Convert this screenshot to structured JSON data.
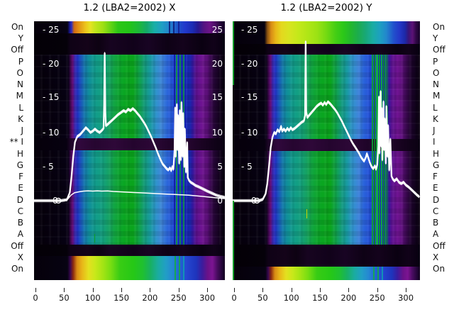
{
  "titles": {
    "left": "1.2 (LBA2=2002) X",
    "right": "1.2 (LBA2=2002) Y"
  },
  "row_labels_left": [
    "On",
    "Y",
    "Off",
    "P",
    "O",
    "N",
    "M",
    "L",
    "K",
    "J",
    "** I",
    "H",
    "G",
    "F",
    "E",
    "D",
    "C",
    "B",
    "A",
    "Off",
    "X",
    "On"
  ],
  "row_labels_right": [
    "On",
    "Y",
    "Off",
    "P",
    "O",
    "N",
    "M",
    "L",
    "K",
    "J",
    "I",
    "H",
    "G",
    "F",
    "E",
    "D",
    "C",
    "B",
    "A",
    "Off",
    "X",
    "On"
  ],
  "annotation_marker": "**",
  "y_axis": {
    "left_inner_labels": [
      "- 25",
      "- 20",
      "- 15",
      "- 10",
      "- 5",
      "0"
    ],
    "right_inner_labels": [
      "25",
      "20",
      "15",
      "10",
      "5",
      "0"
    ],
    "values": [
      25,
      20,
      15,
      10,
      5,
      0
    ]
  },
  "x_axis": {
    "tick_values": [
      0,
      50,
      100,
      150,
      200,
      250,
      300
    ]
  },
  "colors": {
    "background": "#ffffff",
    "panel_black": "#05000a",
    "curve_white": "#ffffff",
    "rfi_green": "#0c9e2c",
    "rfi_navy": "#101b9e",
    "purple_column": "#701492",
    "teal_body": "#119c8c",
    "green_center": "#0aa41c",
    "text_dark": "#111111"
  },
  "chart_data": [
    {
      "type": "heatmap",
      "panel": "X",
      "title": "1.2 (LBA2=2002) X",
      "x_range": [
        0,
        330
      ],
      "y_range": [
        -11.5,
        26.3
      ],
      "x_ticks": [
        0,
        50,
        100,
        150,
        200,
        250,
        300
      ],
      "y_ticks": [
        0,
        5,
        10,
        15,
        20,
        25
      ],
      "series": [
        {
          "name": "bandpass-x",
          "points": [
            [
              -3,
              0
            ],
            [
              36,
              0
            ],
            [
              44,
              0
            ],
            [
              55,
              0.15
            ],
            [
              60,
              1.2
            ],
            [
              63,
              3.5
            ],
            [
              66,
              6.5
            ],
            [
              69,
              8.6
            ],
            [
              73,
              9.4
            ],
            [
              78,
              9.7
            ],
            [
              83,
              10.2
            ],
            [
              88,
              10.7
            ],
            [
              92,
              10.4
            ],
            [
              96,
              10.0
            ],
            [
              100,
              10.2
            ],
            [
              104,
              10.5
            ],
            [
              108,
              10.2
            ],
            [
              112,
              10.0
            ],
            [
              116,
              10.3
            ],
            [
              119,
              10.6
            ],
            [
              120,
              14
            ],
            [
              121,
              21.6
            ],
            [
              122,
              13
            ],
            [
              123,
              11.0
            ],
            [
              126,
              11.2
            ],
            [
              130,
              11.5
            ],
            [
              134,
              11.8
            ],
            [
              139,
              12.2
            ],
            [
              144,
              12.6
            ],
            [
              149,
              12.9
            ],
            [
              154,
              13.2
            ],
            [
              158,
              13.0
            ],
            [
              162,
              13.4
            ],
            [
              166,
              13.2
            ],
            [
              170,
              13.5
            ],
            [
              174,
              13.2
            ],
            [
              178,
              12.8
            ],
            [
              182,
              12.4
            ],
            [
              186,
              11.9
            ],
            [
              190,
              11.4
            ],
            [
              194,
              10.8
            ],
            [
              198,
              10.1
            ],
            [
              202,
              9.4
            ],
            [
              206,
              8.6
            ],
            [
              210,
              7.8
            ],
            [
              214,
              6.9
            ],
            [
              218,
              6.1
            ],
            [
              222,
              5.4
            ],
            [
              226,
              5.0
            ],
            [
              229,
              4.7
            ],
            [
              232,
              4.5
            ],
            [
              235,
              4.8
            ],
            [
              237,
              4.4
            ],
            [
              239,
              5.0
            ],
            [
              241,
              4.6
            ],
            [
              243,
              7.5
            ],
            [
              244,
              13.6
            ],
            [
              245,
              6.5
            ],
            [
              247,
              14.1
            ],
            [
              248,
              7.5
            ],
            [
              249,
              12.5
            ],
            [
              251,
              5.5
            ],
            [
              252,
              13.2
            ],
            [
              254,
              6.0
            ],
            [
              255,
              14.4
            ],
            [
              257,
              6.5
            ],
            [
              258,
              12.8
            ],
            [
              260,
              5.0
            ],
            [
              261,
              10.5
            ],
            [
              263,
              4.2
            ],
            [
              265,
              8.5
            ],
            [
              266,
              3.4
            ],
            [
              268,
              3.0
            ],
            [
              271,
              2.7
            ],
            [
              275,
              2.5
            ],
            [
              280,
              2.2
            ],
            [
              286,
              2.0
            ],
            [
              293,
              1.7
            ],
            [
              300,
              1.4
            ],
            [
              308,
              1.1
            ],
            [
              316,
              0.8
            ],
            [
              324,
              0.6
            ],
            [
              330,
              0.5
            ]
          ]
        },
        {
          "name": "baseline-x",
          "points": [
            [
              -3,
              0
            ],
            [
              50,
              0
            ],
            [
              56,
              0.2
            ],
            [
              62,
              0.8
            ],
            [
              68,
              1.15
            ],
            [
              76,
              1.3
            ],
            [
              84,
              1.4
            ],
            [
              92,
              1.45
            ],
            [
              100,
              1.4
            ],
            [
              108,
              1.45
            ],
            [
              116,
              1.4
            ],
            [
              126,
              1.42
            ],
            [
              136,
              1.35
            ],
            [
              148,
              1.3
            ],
            [
              160,
              1.25
            ],
            [
              172,
              1.2
            ],
            [
              184,
              1.15
            ],
            [
              196,
              1.1
            ],
            [
              208,
              1.05
            ],
            [
              220,
              1.0
            ],
            [
              232,
              0.95
            ],
            [
              244,
              0.9
            ],
            [
              256,
              0.85
            ],
            [
              268,
              0.8
            ],
            [
              280,
              0.72
            ],
            [
              292,
              0.62
            ],
            [
              304,
              0.52
            ],
            [
              316,
              0.42
            ],
            [
              324,
              0.35
            ],
            [
              330,
              0.3
            ]
          ]
        },
        {
          "name": "zero-marker-x",
          "points": [
            [
              40,
              0
            ]
          ]
        }
      ]
    },
    {
      "type": "heatmap",
      "panel": "Y",
      "title": "1.2 (LBA2=2002) Y",
      "x_range": [
        0,
        323
      ],
      "y_range": [
        -11.5,
        26.3
      ],
      "x_ticks": [
        0,
        50,
        100,
        150,
        200,
        250,
        300
      ],
      "y_ticks": [
        0,
        5,
        10,
        15,
        20,
        25
      ],
      "series": [
        {
          "name": "bandpass-y",
          "points": [
            [
              -3,
              0
            ],
            [
              36,
              0
            ],
            [
              44,
              0
            ],
            [
              50,
              0.2
            ],
            [
              55,
              1.0
            ],
            [
              58,
              2.5
            ],
            [
              61,
              5.0
            ],
            [
              64,
              7.8
            ],
            [
              67,
              9.3
            ],
            [
              70,
              10.0
            ],
            [
              73,
              9.8
            ],
            [
              76,
              10.4
            ],
            [
              79,
              10.1
            ],
            [
              82,
              10.9
            ],
            [
              84,
              10.2
            ],
            [
              87,
              10.5
            ],
            [
              90,
              10.2
            ],
            [
              93,
              10.6
            ],
            [
              96,
              10.3
            ],
            [
              99,
              10.7
            ],
            [
              102,
              10.4
            ],
            [
              106,
              10.6
            ],
            [
              110,
              10.9
            ],
            [
              114,
              11.2
            ],
            [
              118,
              11.5
            ],
            [
              122,
              11.7
            ],
            [
              124,
              12.5
            ],
            [
              125,
              23.3
            ],
            [
              126,
              13
            ],
            [
              128,
              12.2
            ],
            [
              132,
              12.6
            ],
            [
              136,
              13.0
            ],
            [
              140,
              13.4
            ],
            [
              144,
              13.8
            ],
            [
              148,
              14.1
            ],
            [
              152,
              14.3
            ],
            [
              155,
              14.0
            ],
            [
              158,
              14.4
            ],
            [
              161,
              14.1
            ],
            [
              164,
              14.5
            ],
            [
              168,
              14.2
            ],
            [
              172,
              13.8
            ],
            [
              176,
              13.4
            ],
            [
              180,
              12.9
            ],
            [
              184,
              12.3
            ],
            [
              188,
              11.7
            ],
            [
              192,
              11.0
            ],
            [
              196,
              10.3
            ],
            [
              200,
              9.6
            ],
            [
              204,
              8.9
            ],
            [
              208,
              8.3
            ],
            [
              212,
              7.8
            ],
            [
              215,
              7.4
            ],
            [
              218,
              7.0
            ],
            [
              221,
              6.5
            ],
            [
              224,
              6.1
            ],
            [
              227,
              5.8
            ],
            [
              230,
              6.3
            ],
            [
              232,
              6.9
            ],
            [
              234,
              6.4
            ],
            [
              237,
              5.6
            ],
            [
              240,
              5.0
            ],
            [
              243,
              4.7
            ],
            [
              246,
              5.1
            ],
            [
              248,
              4.6
            ],
            [
              250,
              5.3
            ],
            [
              252,
              8.0
            ],
            [
              253,
              15.2
            ],
            [
              254,
              7.0
            ],
            [
              256,
              16.0
            ],
            [
              257,
              8.0
            ],
            [
              258,
              13.5
            ],
            [
              259,
              6.0
            ],
            [
              261,
              14.5
            ],
            [
              262,
              7.5
            ],
            [
              263,
              12.0
            ],
            [
              265,
              5.5
            ],
            [
              266,
              13.8
            ],
            [
              268,
              6.5
            ],
            [
              269,
              11.0
            ],
            [
              271,
              4.5
            ],
            [
              273,
              9.0
            ],
            [
              275,
              3.6
            ],
            [
              277,
              3.2
            ],
            [
              280,
              2.9
            ],
            [
              284,
              3.2
            ],
            [
              288,
              2.7
            ],
            [
              292,
              2.5
            ],
            [
              296,
              2.7
            ],
            [
              300,
              2.3
            ],
            [
              305,
              2.0
            ],
            [
              310,
              1.6
            ],
            [
              315,
              1.2
            ],
            [
              320,
              0.8
            ],
            [
              323,
              0.6
            ]
          ]
        },
        {
          "name": "zero-marker-y",
          "points": [
            [
              40,
              0
            ]
          ]
        }
      ]
    }
  ]
}
